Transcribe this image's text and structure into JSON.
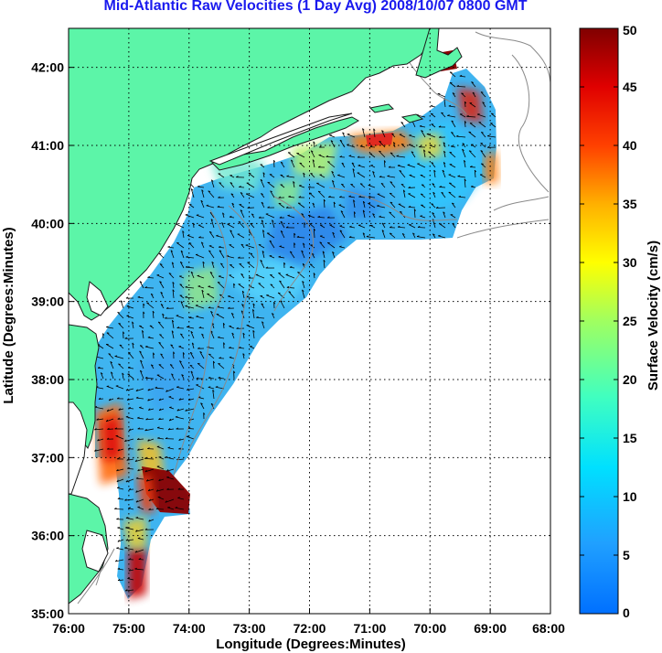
{
  "title": "Mid-Atlantic Raw Velocities (1 Day Avg) 2008/10/07 0800 GMT",
  "colors": {
    "title": "#1a1aee",
    "land": "#5cf5a8",
    "water_background": "#ffffff",
    "bathymetry": "#8a8a8a",
    "arrows": "#000000"
  },
  "chart_data": {
    "type": "heatmap",
    "xlabel": "Longitude (Degrees:Minutes)",
    "ylabel": "Latitude (Degrees:Minutes)",
    "x_ticks": [
      "76:00",
      "75:00",
      "74:00",
      "73:00",
      "72:00",
      "71:00",
      "70:00",
      "69:00",
      "68:00"
    ],
    "y_ticks": [
      "35:00",
      "36:00",
      "37:00",
      "38:00",
      "39:00",
      "40:00",
      "41:00",
      "42:00"
    ],
    "xlim": [
      -76,
      -68
    ],
    "ylim": [
      35,
      42.5
    ],
    "grid": true,
    "colorbar": {
      "label": "Surface Velocity (cm/s)",
      "ticks": [
        "0",
        "5",
        "10",
        "15",
        "20",
        "25",
        "30",
        "35",
        "40",
        "45",
        "50"
      ],
      "range": [
        0,
        50
      ],
      "colormap": "jet"
    },
    "velocity_field_samples": [
      {
        "lon": -74.2,
        "lat": 36.6,
        "speed": 48
      },
      {
        "lon": -74.9,
        "lat": 37.5,
        "speed": 42
      },
      {
        "lon": -74.8,
        "lat": 35.3,
        "speed": 45
      },
      {
        "lon": -70.1,
        "lat": 42.1,
        "speed": 50
      },
      {
        "lon": -69.5,
        "lat": 41.5,
        "speed": 44
      },
      {
        "lon": -70.9,
        "lat": 41.0,
        "speed": 38
      },
      {
        "lon": -69.1,
        "lat": 40.8,
        "speed": 36
      },
      {
        "lon": -73.0,
        "lat": 39.5,
        "speed": 7
      },
      {
        "lon": -72.5,
        "lat": 39.8,
        "speed": 9
      },
      {
        "lon": -71.5,
        "lat": 40.3,
        "speed": 10
      },
      {
        "lon": -74.0,
        "lat": 39.0,
        "speed": 12
      },
      {
        "lon": -74.0,
        "lat": 37.8,
        "speed": 15
      },
      {
        "lon": -72.0,
        "lat": 40.7,
        "speed": 22
      },
      {
        "lon": -70.0,
        "lat": 40.2,
        "speed": 14
      }
    ]
  }
}
